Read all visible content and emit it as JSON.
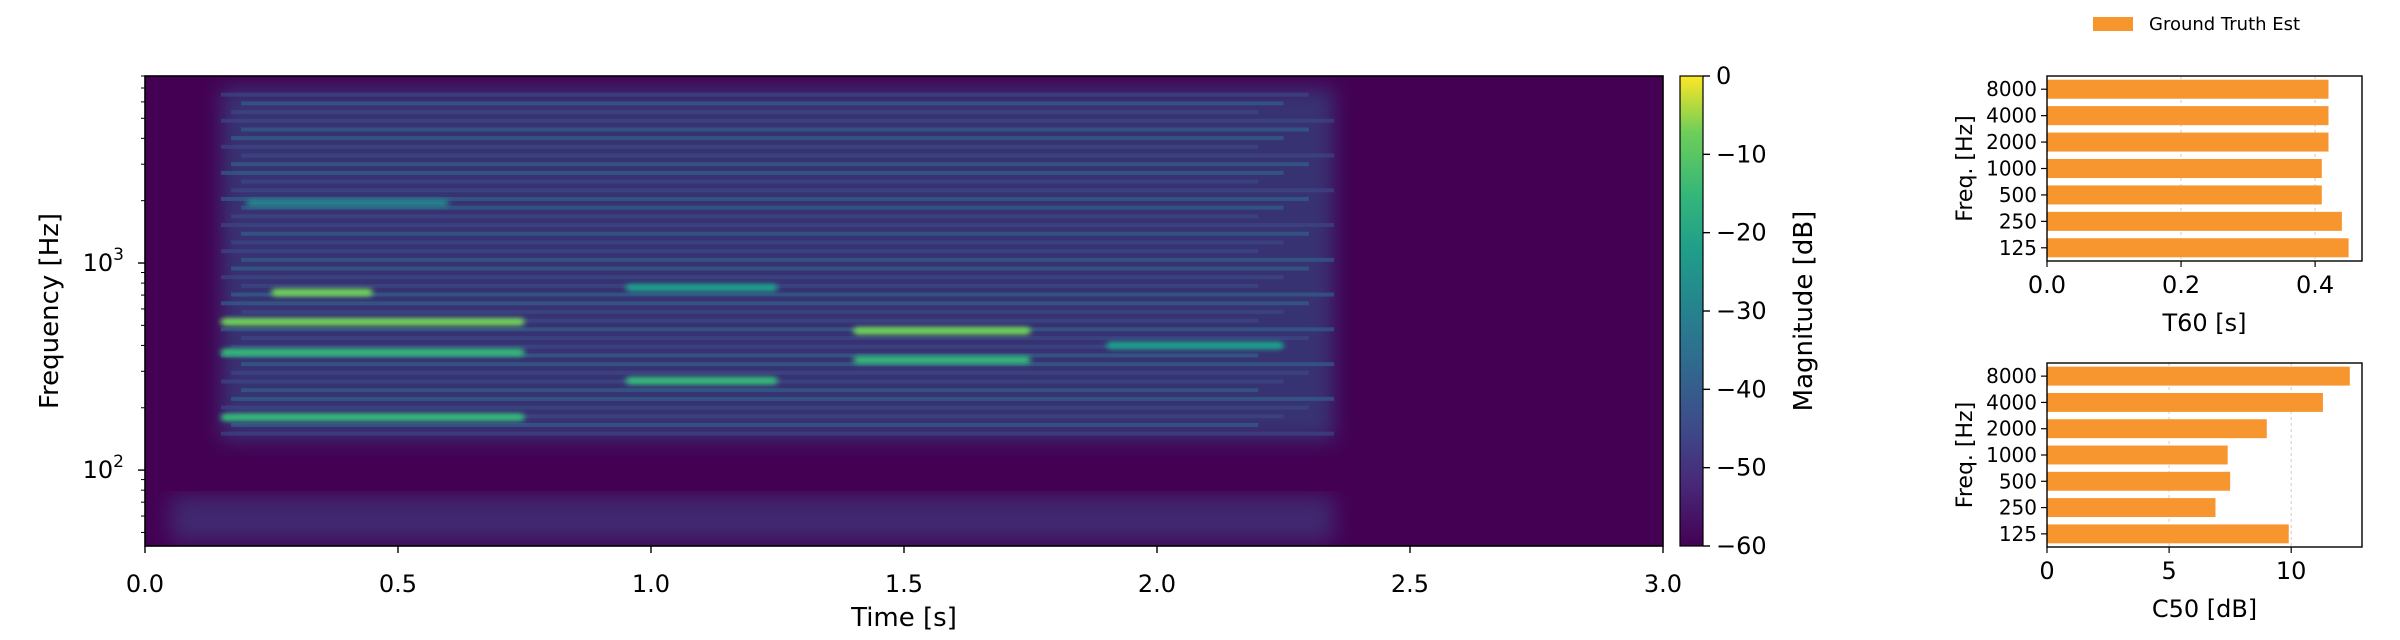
{
  "legend": {
    "label": "Ground Truth Est",
    "color": "#F7962E",
    "placement": "top-right"
  },
  "spectrogram": {
    "xlabel": "Time [s]",
    "ylabel": "Frequency [Hz]",
    "xlim": [
      0.0,
      3.0
    ],
    "xticks": [
      "0.0",
      "0.5",
      "1.0",
      "1.5",
      "2.0",
      "2.5",
      "3.0"
    ],
    "yscale": "log",
    "ylim": [
      43,
      8000
    ],
    "yticks": [
      {
        "value": 100,
        "label": "10",
        "exp": "2"
      },
      {
        "value": 1000,
        "label": "10",
        "exp": "3"
      }
    ],
    "colormap": "viridis",
    "background_color": "#440154",
    "colorbar": {
      "label": "Magnitude [dB]",
      "range": [
        -60,
        0
      ],
      "ticks": [
        "0",
        "−10",
        "−20",
        "−30",
        "−40",
        "−50",
        "−60"
      ]
    }
  },
  "chart_data": [
    {
      "type": "heatmap",
      "title": "",
      "xlabel": "Time [s]",
      "ylabel": "Frequency [Hz]",
      "xlim": [
        0.0,
        3.0
      ],
      "ylim": [
        43,
        8000
      ],
      "yscale": "log",
      "colorbar_label": "Magnitude [dB]",
      "colorbar_range": [
        -60,
        0
      ],
      "speech_extent_s": [
        0.15,
        2.35
      ],
      "harmonic_bands": [
        {
          "t0": 0.15,
          "t1": 0.75,
          "f": 180,
          "db": -18
        },
        {
          "t0": 0.15,
          "t1": 0.75,
          "f": 370,
          "db": -14
        },
        {
          "t0": 0.15,
          "t1": 0.75,
          "f": 520,
          "db": -8
        },
        {
          "t0": 0.25,
          "t1": 0.45,
          "f": 720,
          "db": -10
        },
        {
          "t0": 0.2,
          "t1": 0.6,
          "f": 1950,
          "db": -28
        },
        {
          "t0": 0.95,
          "t1": 1.25,
          "f": 270,
          "db": -16
        },
        {
          "t0": 0.95,
          "t1": 1.25,
          "f": 760,
          "db": -20
        },
        {
          "t0": 1.4,
          "t1": 1.75,
          "f": 470,
          "db": -10
        },
        {
          "t0": 1.4,
          "t1": 1.75,
          "f": 340,
          "db": -18
        },
        {
          "t0": 1.9,
          "t1": 2.25,
          "f": 400,
          "db": -22
        }
      ]
    },
    {
      "type": "bar",
      "orientation": "horizontal",
      "xlabel": "T60 [s]",
      "ylabel": "Freq. [Hz]",
      "categories": [
        "125",
        "250",
        "500",
        "1000",
        "2000",
        "4000",
        "8000"
      ],
      "series": [
        {
          "name": "Ground Truth Est",
          "values": [
            0.45,
            0.44,
            0.41,
            0.41,
            0.42,
            0.42,
            0.42
          ]
        }
      ],
      "xlim": [
        0,
        0.47
      ],
      "xticks": [
        "0.0",
        "0.2",
        "0.4"
      ],
      "xtick_values": [
        0,
        0.2,
        0.4
      ],
      "grid": "x"
    },
    {
      "type": "bar",
      "orientation": "horizontal",
      "xlabel": "C50 [dB]",
      "ylabel": "Freq. [Hz]",
      "categories": [
        "125",
        "250",
        "500",
        "1000",
        "2000",
        "4000",
        "8000"
      ],
      "series": [
        {
          "name": "Ground Truth Est",
          "values": [
            9.9,
            6.9,
            7.5,
            7.4,
            9.0,
            11.3,
            12.4
          ]
        }
      ],
      "xlim": [
        0,
        12.9
      ],
      "xticks": [
        "0",
        "5",
        "10"
      ],
      "xtick_values": [
        0,
        5,
        10
      ],
      "grid": "x"
    }
  ]
}
